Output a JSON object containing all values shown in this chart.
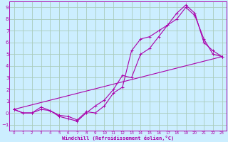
{
  "xlabel": "Windchill (Refroidissement éolien,°C)",
  "bg_color": "#cceeff",
  "grid_color": "#aaccbb",
  "line_color": "#aa00aa",
  "xlim": [
    -0.5,
    23.5
  ],
  "ylim": [
    -1.5,
    9.5
  ],
  "xticks": [
    0,
    1,
    2,
    3,
    4,
    5,
    6,
    7,
    8,
    9,
    10,
    11,
    12,
    13,
    14,
    15,
    16,
    17,
    18,
    19,
    20,
    21,
    22,
    23
  ],
  "yticks": [
    -1,
    0,
    1,
    2,
    3,
    4,
    5,
    6,
    7,
    8,
    9
  ],
  "series1_x": [
    0,
    1,
    2,
    3,
    4,
    5,
    6,
    7,
    8,
    9,
    10,
    11,
    12,
    13,
    14,
    15,
    16,
    17,
    18,
    19,
    20,
    21,
    22,
    23
  ],
  "series1_y": [
    0.3,
    0.0,
    0.0,
    0.3,
    0.2,
    -0.3,
    -0.5,
    -0.7,
    0.0,
    0.6,
    1.1,
    2.0,
    3.2,
    3.0,
    5.0,
    5.5,
    6.5,
    7.5,
    8.0,
    9.0,
    8.3,
    6.3,
    5.0,
    4.8
  ],
  "series2_x": [
    0,
    1,
    2,
    3,
    4,
    5,
    6,
    7,
    8,
    9,
    10,
    11,
    12,
    13,
    14,
    15,
    16,
    17,
    18,
    19,
    20,
    21,
    22,
    23
  ],
  "series2_y": [
    0.3,
    0.0,
    0.0,
    0.5,
    0.2,
    -0.2,
    -0.3,
    -0.6,
    0.1,
    0.0,
    0.6,
    1.7,
    2.2,
    5.3,
    6.3,
    6.5,
    7.0,
    7.5,
    8.5,
    9.2,
    8.5,
    6.0,
    5.3,
    4.8
  ],
  "series3_x": [
    0,
    23
  ],
  "series3_y": [
    0.3,
    4.8
  ]
}
